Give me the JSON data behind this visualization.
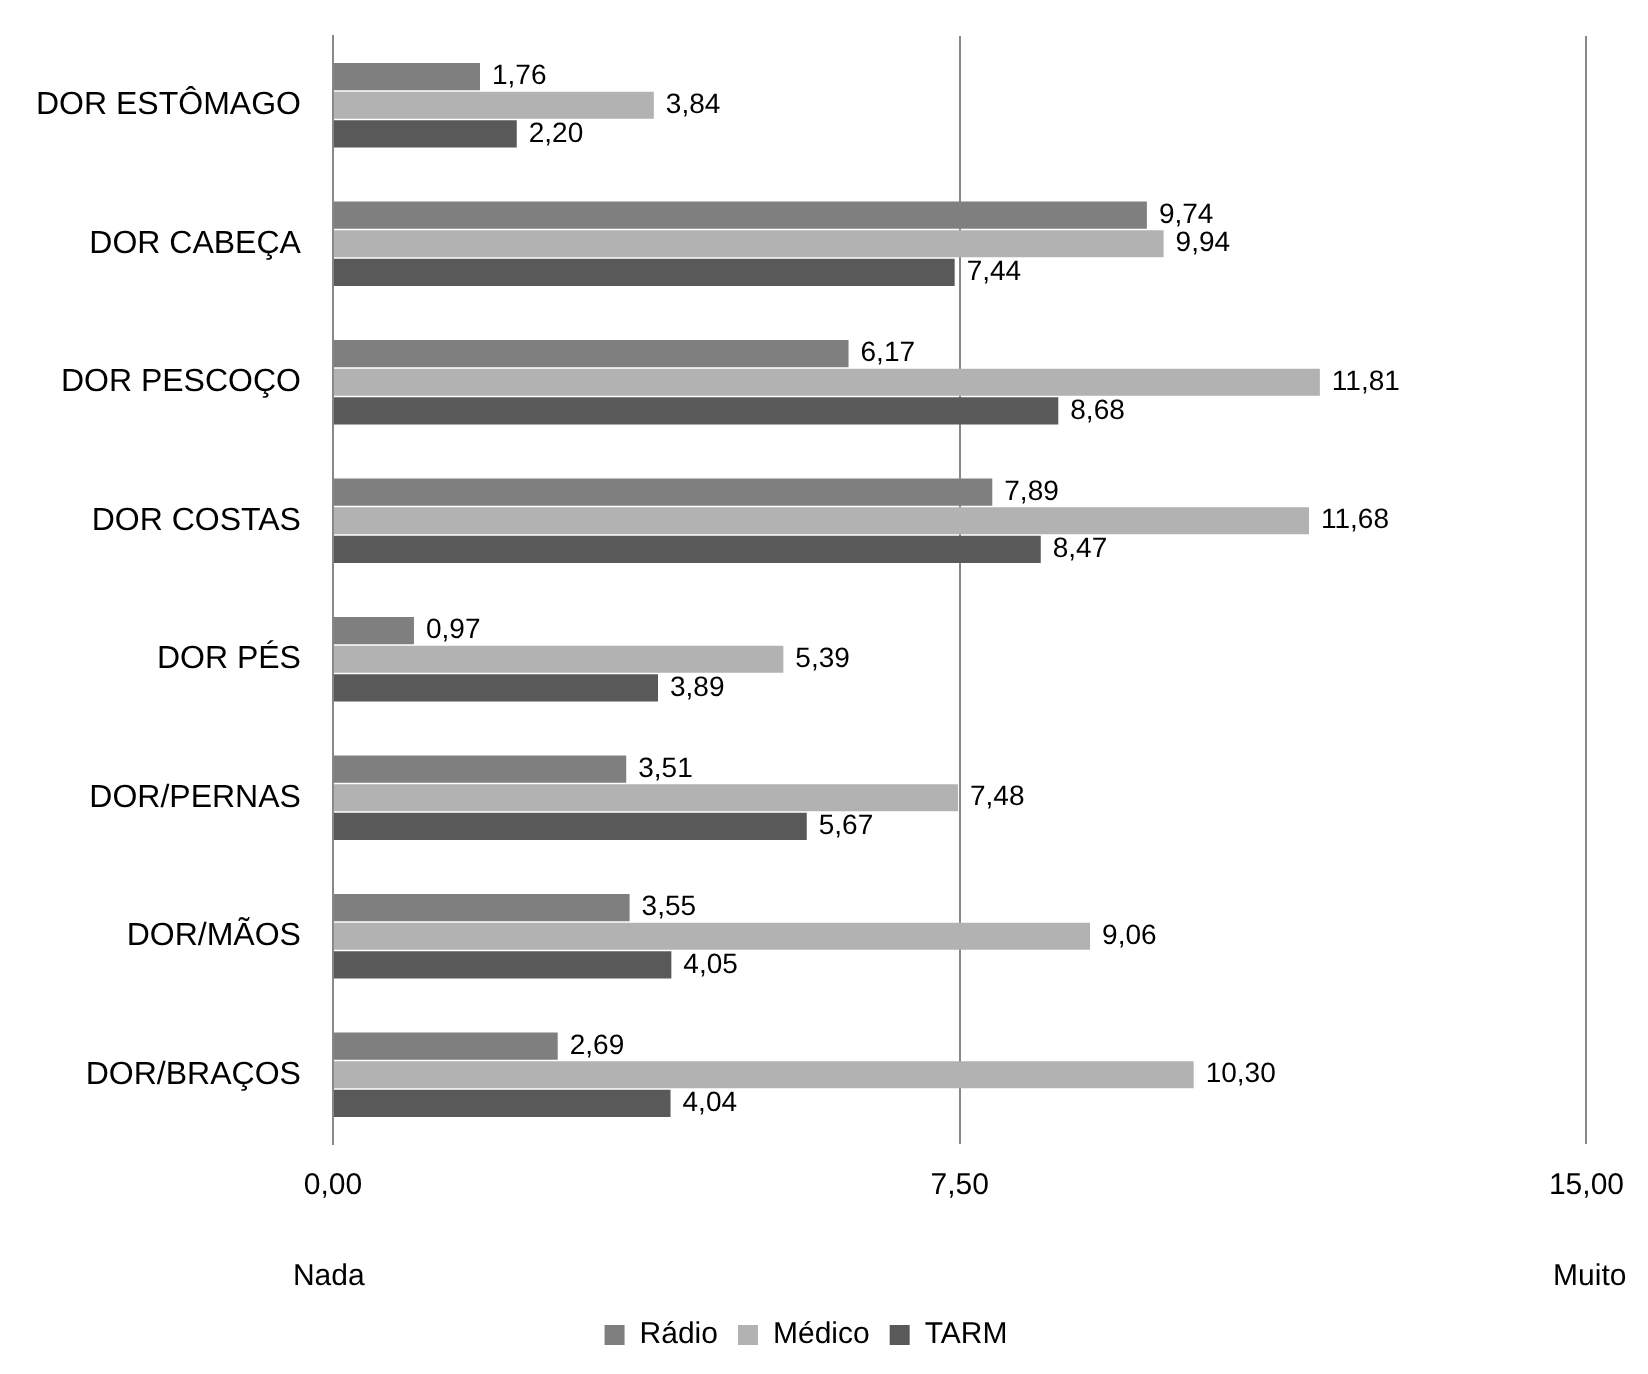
{
  "chart_data": {
    "type": "bar",
    "orientation": "horizontal",
    "categories": [
      "DOR ESTÔMAGO",
      "DOR CABEÇA",
      "DOR PESCOÇO",
      "DOR COSTAS",
      "DOR PÉS",
      "DOR/PERNAS",
      "DOR/MÃOS",
      "DOR/BRAÇOS"
    ],
    "series": [
      {
        "name": "Rádio",
        "color": "#7f7f7f",
        "values": [
          1.76,
          9.74,
          6.17,
          7.89,
          0.97,
          3.51,
          3.55,
          2.69
        ],
        "value_labels": [
          "1,76",
          "9,74",
          "6,17",
          "7,89",
          "0,97",
          "3,51",
          "3,55",
          "2,69"
        ]
      },
      {
        "name": "Médico",
        "color": "#b2b2b2",
        "values": [
          3.84,
          9.94,
          11.81,
          11.68,
          5.39,
          7.48,
          9.06,
          10.3
        ],
        "value_labels": [
          "3,84",
          "9,94",
          "11,81",
          "11,68",
          "5,39",
          "7,48",
          "9,06",
          "10,30"
        ]
      },
      {
        "name": "TARM",
        "color": "#595959",
        "values": [
          2.2,
          7.44,
          8.68,
          8.47,
          3.89,
          5.67,
          4.05,
          4.04
        ],
        "value_labels": [
          "2,20",
          "7,44",
          "8,68",
          "8,47",
          "3,89",
          "5,67",
          "4,05",
          "4,04"
        ]
      }
    ],
    "xlim": [
      0,
      15
    ],
    "xticks": [
      {
        "value": 0,
        "label": "0,00"
      },
      {
        "value": 7.5,
        "label": "7,50"
      },
      {
        "value": 15,
        "label": "15,00"
      }
    ],
    "annotations": [
      "Nada",
      "Muito"
    ],
    "grid": "x",
    "legend": "bottom"
  }
}
